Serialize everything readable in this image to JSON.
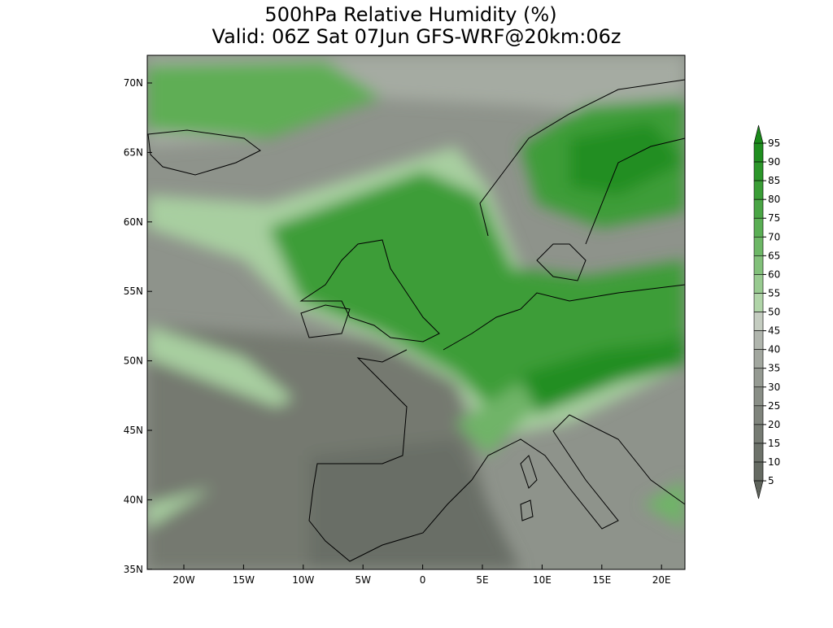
{
  "title": {
    "line1": "500hPa Relative Humidity (%)",
    "line2": "Valid: 06Z Sat 07Jun GFS-WRF@20km:06z"
  },
  "map": {
    "x_labels": [
      "20W",
      "15W",
      "10W",
      "5W",
      "0",
      "5E",
      "10E",
      "15E",
      "20E"
    ],
    "y_labels": [
      "70N",
      "65N",
      "60N",
      "55N",
      "50N",
      "45N",
      "40N",
      "35N"
    ]
  },
  "colorbar": {
    "levels": [
      95,
      90,
      85,
      80,
      75,
      70,
      65,
      60,
      55,
      50,
      45,
      40,
      35,
      30,
      25,
      20,
      15,
      10,
      5
    ]
  }
}
